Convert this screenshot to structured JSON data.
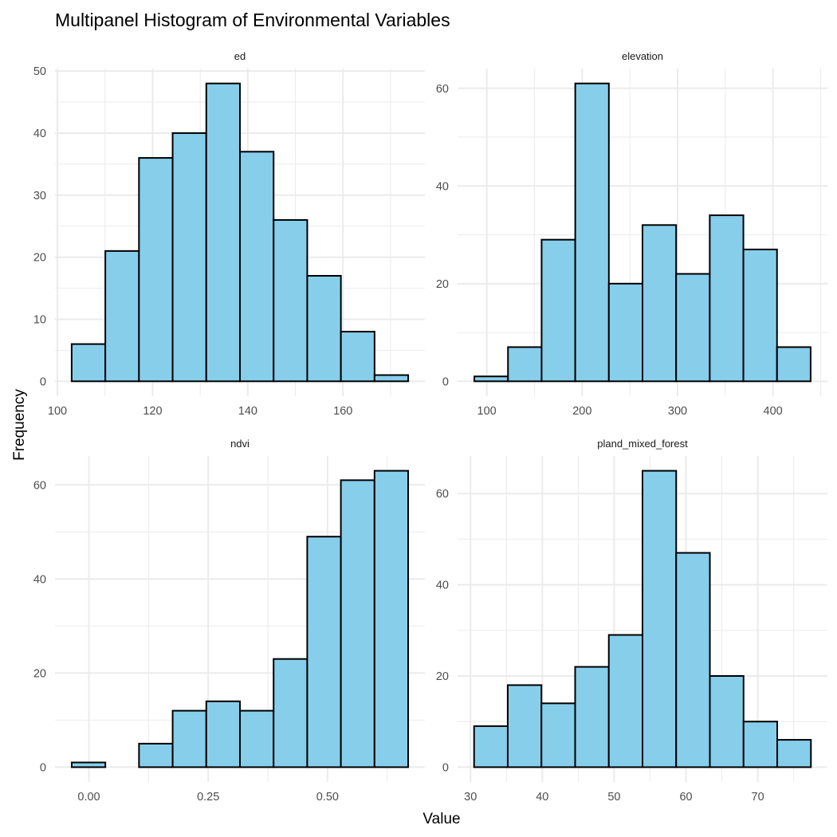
{
  "chart_data": {
    "type": "bar",
    "title": "Multipanel Histogram of Environmental Variables",
    "xlabel": "Value",
    "ylabel": "Frequency",
    "fill_color": "#87CEEB",
    "outline_color": "#000000",
    "grid": true,
    "panels": [
      {
        "name": "ed",
        "bin_start": 103.0,
        "bin_width": 7.07,
        "counts": [
          6,
          21,
          36,
          40,
          48,
          37,
          26,
          17,
          8,
          1
        ],
        "xlim": [
          99.5,
          177.2
        ],
        "ylim": [
          -2.4,
          50.4
        ],
        "xticks": [
          100,
          120,
          140,
          160
        ],
        "xtick_labels": [
          "100",
          "120",
          "140",
          "160"
        ],
        "yticks": [
          0,
          10,
          20,
          30,
          40,
          50
        ],
        "ytick_labels": [
          "0",
          "10",
          "20",
          "30",
          "40",
          "50"
        ]
      },
      {
        "name": "elevation",
        "bin_start": 87.0,
        "bin_width": 35.25,
        "counts": [
          1,
          7,
          29,
          61,
          20,
          32,
          22,
          34,
          27,
          7
        ],
        "xlim": [
          69.4,
          457.1
        ],
        "ylim": [
          -3.05,
          64.05
        ],
        "xticks": [
          100,
          200,
          300,
          400
        ],
        "xtick_labels": [
          "100",
          "200",
          "300",
          "400"
        ],
        "yticks": [
          0,
          20,
          40,
          60
        ],
        "ytick_labels": [
          "0",
          "20",
          "40",
          "60"
        ]
      },
      {
        "name": "ndvi",
        "bin_start": -0.036,
        "bin_width": 0.0705,
        "counts": [
          1,
          0,
          5,
          12,
          14,
          12,
          23,
          49,
          61,
          63
        ],
        "xlim": [
          -0.071,
          0.704
        ],
        "ylim": [
          -3.15,
          66.15
        ],
        "xticks": [
          0,
          0.25,
          0.5
        ],
        "xtick_labels": [
          "0.00",
          "0.25",
          "0.50"
        ],
        "yticks": [
          0,
          20,
          40,
          60
        ],
        "ytick_labels": [
          "0",
          "20",
          "40",
          "60"
        ]
      },
      {
        "name": "pland_mixed_forest",
        "bin_start": 30.5,
        "bin_width": 4.69,
        "counts": [
          9,
          18,
          14,
          22,
          29,
          65,
          47,
          20,
          10,
          6
        ],
        "xlim": [
          28.2,
          79.7
        ],
        "ylim": [
          -3.25,
          68.25
        ],
        "xticks": [
          30,
          40,
          50,
          60,
          70
        ],
        "xtick_labels": [
          "30",
          "40",
          "50",
          "60",
          "70"
        ],
        "yticks": [
          0,
          20,
          40,
          60
        ],
        "ytick_labels": [
          "0",
          "20",
          "40",
          "60"
        ]
      }
    ]
  }
}
